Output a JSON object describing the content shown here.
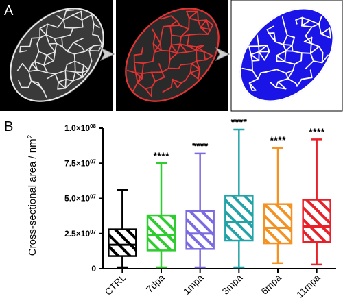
{
  "panel_labels": {
    "a": "A",
    "b": "B"
  },
  "images": [
    {
      "name": "raw-micrograph",
      "bg": "#000000",
      "fg": "#e8e8e8"
    },
    {
      "name": "red-traced-micrograph",
      "bg": "#000000",
      "fg": "#e03030"
    },
    {
      "name": "blue-segmented-map",
      "bg": "#ffffff",
      "fg": "#1a14e6"
    }
  ],
  "chart_data": {
    "type": "box",
    "ylabel": "Cross-sectional area / nm",
    "ylabel_sup": "2",
    "ylim": [
      0,
      100000000
    ],
    "yticks": [
      {
        "value": 0,
        "mant": "0",
        "exp": ""
      },
      {
        "value": 25000000,
        "mant": "2.5×10",
        "exp": "07"
      },
      {
        "value": 50000000,
        "mant": "5.0×10",
        "exp": "07"
      },
      {
        "value": 75000000,
        "mant": "7.5×10",
        "exp": "07"
      },
      {
        "value": 100000000,
        "mant": "1.0×10",
        "exp": "08"
      }
    ],
    "categories": [
      "CTRL",
      "7dpa",
      "1mpa",
      "3mpa",
      "6mpa",
      "11mpa"
    ],
    "colors": [
      "#000000",
      "#2ecc2e",
      "#7b6be0",
      "#21a3a8",
      "#f39221",
      "#e8202a"
    ],
    "boxes": [
      {
        "min": 1000000,
        "q1": 9000000,
        "median": 17000000,
        "q3": 28000000,
        "max": 56000000,
        "sig": ""
      },
      {
        "min": 1000000,
        "q1": 13000000,
        "median": 24000000,
        "q3": 38000000,
        "max": 75000000,
        "sig": "****"
      },
      {
        "min": 1000000,
        "q1": 14000000,
        "median": 25000000,
        "q3": 41000000,
        "max": 82000000,
        "sig": "****"
      },
      {
        "min": 1000000,
        "q1": 20000000,
        "median": 33000000,
        "q3": 52000000,
        "max": 99000000,
        "sig": "****"
      },
      {
        "min": 4000000,
        "q1": 18000000,
        "median": 29000000,
        "q3": 46000000,
        "max": 86000000,
        "sig": "****"
      },
      {
        "min": 3000000,
        "q1": 19000000,
        "median": 30000000,
        "q3": 49000000,
        "max": 92000000,
        "sig": "****"
      }
    ]
  }
}
